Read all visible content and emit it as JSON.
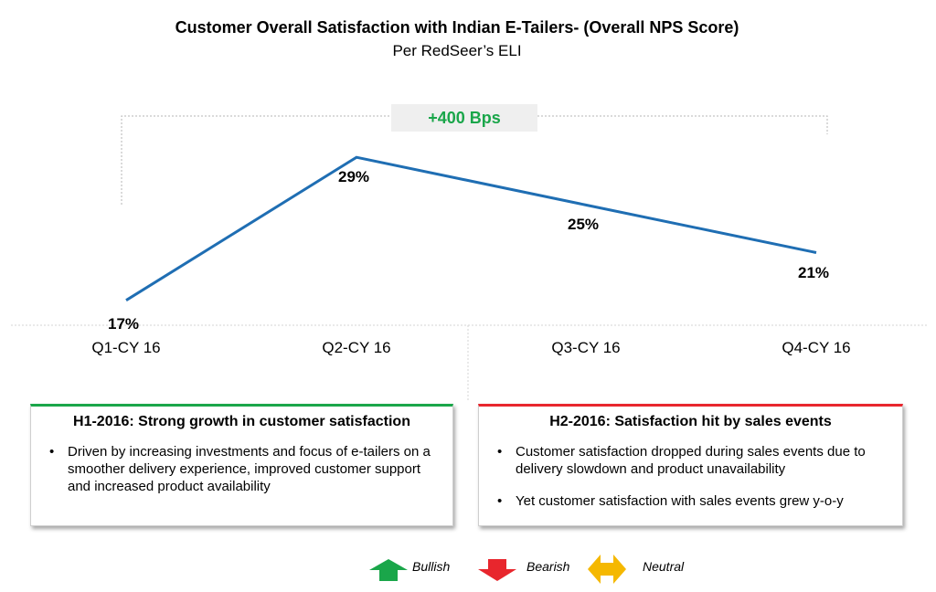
{
  "chart_data": {
    "type": "line",
    "title": "Customer Overall Satisfaction with Indian E-Tailers- (Overall NPS Score)",
    "subtitle": "Per RedSeer’s ELI",
    "categories": [
      "Q1-CY 16",
      "Q2-CY 16",
      "Q3-CY 16",
      "Q4-CY 16"
    ],
    "values": [
      17,
      29,
      25,
      21
    ],
    "data_labels": [
      "17%",
      "29%",
      "25%",
      "21%"
    ],
    "ylim": [
      10,
      33
    ],
    "series_color": "#1f6eb3",
    "annotation": "+400 Bps",
    "annotation_color": "#1aa64a",
    "grid": false
  },
  "panels": {
    "h1": {
      "heading": "H1-2016: Strong growth in customer satisfaction",
      "bullets": [
        "Driven by increasing investments and focus of e-tailers on a smoother delivery experience, improved customer support and increased product availability"
      ],
      "accent": "#1aa64a"
    },
    "h2": {
      "heading": "H2-2016: Satisfaction hit by sales events",
      "bullets": [
        "Customer satisfaction dropped during sales events due to delivery slowdown and product unavailability",
        "Yet customer satisfaction with sales events grew y-o-y"
      ],
      "accent": "#e8262d"
    }
  },
  "legend": [
    {
      "label": "Bullish",
      "icon": "arrow-up-icon",
      "color": "#1aa64a"
    },
    {
      "label": "Bearish",
      "icon": "arrow-down-icon",
      "color": "#e8262d"
    },
    {
      "label": "Neutral",
      "icon": "arrow-left-right-icon",
      "color": "#f5b800"
    }
  ]
}
